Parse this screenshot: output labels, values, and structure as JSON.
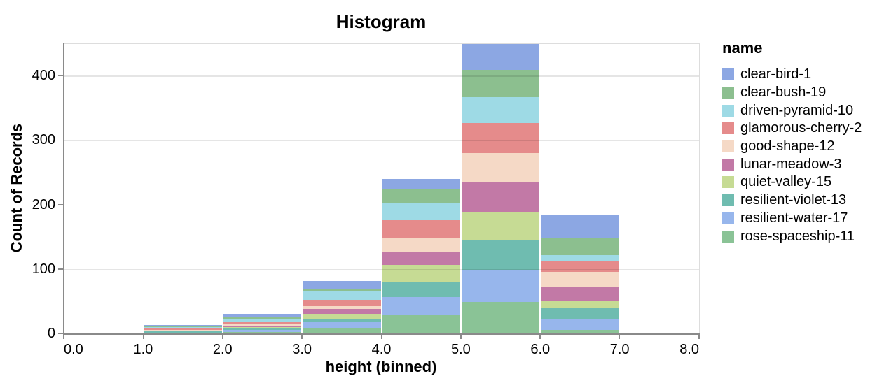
{
  "page": {
    "background": "#ffffff",
    "axis_color": "#8a8a8a",
    "grid_color": "#dddddd"
  },
  "chart_data": {
    "type": "bar",
    "subtype": "stacked-histogram",
    "title": "Histogram",
    "xlabel": "height (binned)",
    "ylabel": "Count of Records",
    "legend_title": "name",
    "legend_position": "right",
    "grid": true,
    "xlim": [
      0,
      8
    ],
    "ylim": [
      0,
      450
    ],
    "x_tick_labels": [
      "0.0",
      "1.0",
      "2.0",
      "3.0",
      "4.0",
      "5.0",
      "6.0",
      "7.0",
      "8.0"
    ],
    "x_tick_values": [
      0,
      1,
      2,
      3,
      4,
      5,
      6,
      7,
      8
    ],
    "y_tick_labels": [
      "0",
      "100",
      "200",
      "300",
      "400"
    ],
    "y_tick_values": [
      0,
      100,
      200,
      300,
      400
    ],
    "bins": [
      [
        0,
        1
      ],
      [
        1,
        2
      ],
      [
        2,
        3
      ],
      [
        3,
        4
      ],
      [
        4,
        5
      ],
      [
        5,
        6
      ],
      [
        6,
        7
      ],
      [
        7,
        8
      ]
    ],
    "bin_totals": [
      1,
      14,
      32,
      82,
      241,
      450,
      185,
      2
    ],
    "stack_order": "first-series-on-top",
    "series": [
      {
        "name": "clear-bird-1",
        "color": "#8CA7E3",
        "values": [
          0,
          2,
          6,
          11,
          17,
          40,
          35,
          0
        ]
      },
      {
        "name": "clear-bush-19",
        "color": "#8CBF8F",
        "values": [
          0,
          1,
          2,
          5,
          20,
          42,
          27,
          0
        ]
      },
      {
        "name": "driven-pyramid-10",
        "color": "#9EDAE5",
        "values": [
          0,
          2,
          4,
          13,
          27,
          41,
          10,
          0
        ]
      },
      {
        "name": "glamorous-cherry-2",
        "color": "#E58B8B",
        "values": [
          0,
          2,
          4,
          10,
          27,
          46,
          16,
          0
        ]
      },
      {
        "name": "good-shape-12",
        "color": "#F5D9C6",
        "values": [
          0,
          1,
          3,
          4,
          22,
          46,
          24,
          0
        ]
      },
      {
        "name": "lunar-meadow-3",
        "color": "#C279A6",
        "values": [
          0,
          1,
          2,
          7,
          21,
          45,
          22,
          1
        ]
      },
      {
        "name": "quiet-valley-15",
        "color": "#C6DB94",
        "values": [
          1,
          1,
          2,
          9,
          27,
          44,
          11,
          0
        ]
      },
      {
        "name": "resilient-violet-13",
        "color": "#6FBCB0",
        "values": [
          0,
          2,
          3,
          5,
          23,
          47,
          17,
          0
        ]
      },
      {
        "name": "resilient-water-17",
        "color": "#97B6EC",
        "values": [
          0,
          1,
          3,
          8,
          28,
          49,
          16,
          1
        ]
      },
      {
        "name": "rose-spaceship-11",
        "color": "#8AC396",
        "values": [
          0,
          1,
          3,
          10,
          29,
          50,
          7,
          0
        ]
      }
    ]
  }
}
